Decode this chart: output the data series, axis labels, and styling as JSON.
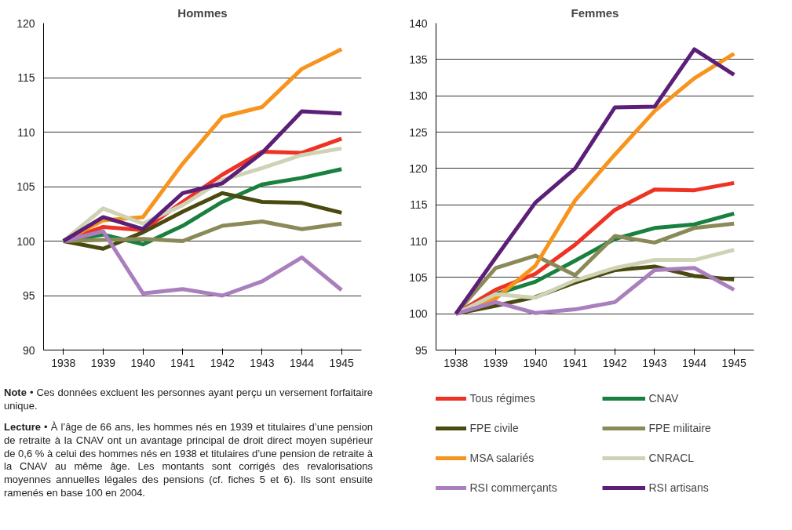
{
  "chart_data": [
    {
      "type": "line",
      "title": "Hommes",
      "categories": [
        "1938",
        "1939",
        "1940",
        "1941",
        "1942",
        "1943",
        "1944",
        "1945"
      ],
      "ylim": [
        90,
        120
      ],
      "yticks": [
        90,
        95,
        100,
        105,
        110,
        115,
        120
      ],
      "grid": "y",
      "legend": false,
      "line_style": "solid",
      "series": [
        {
          "color": "#ee3224",
          "values": [
            100,
            101.3,
            101.0,
            103.6,
            106.1,
            108.2,
            108.1,
            109.4
          ]
        },
        {
          "color": "#1a8040",
          "values": [
            100,
            100.6,
            99.7,
            101.4,
            103.6,
            105.2,
            105.8,
            106.6
          ]
        },
        {
          "color": "#4a4a10",
          "values": [
            100,
            99.3,
            100.8,
            102.7,
            104.4,
            103.6,
            103.5,
            102.6
          ]
        },
        {
          "color": "#8a8a58",
          "values": [
            100,
            100.1,
            100.2,
            100.0,
            101.4,
            101.8,
            101.1,
            101.6
          ]
        },
        {
          "color": "#f7941d",
          "values": [
            100,
            101.9,
            102.2,
            107.1,
            111.4,
            112.3,
            115.8,
            117.6
          ]
        },
        {
          "color": "#cdd3b4",
          "values": [
            100,
            103.0,
            101.6,
            103.3,
            105.6,
            106.7,
            107.9,
            108.5
          ]
        },
        {
          "color": "#a97fbd",
          "values": [
            100,
            100.9,
            95.2,
            95.6,
            95.0,
            96.3,
            98.5,
            95.5
          ]
        },
        {
          "color": "#5c1f78",
          "values": [
            100,
            102.2,
            101.1,
            104.4,
            105.3,
            108.1,
            111.9,
            111.7
          ]
        }
      ],
      "annotations": [
        "Note • Ces données excluent les personnes ayant perçu un versement forfaitaire unique.",
        "Lecture • À l’âge de 66 ans, les hommes nés en 1939 et titulaires d’une pension de retraite à la CNAV ont un avantage principal de droit direct moyen supérieur de 0,6 % à celui des hommes nés en 1938 et titulaires d’une pension de retraite à la CNAV au même âge. Les montants sont corrigés des revalorisations moyennes annuelles légales des pensions (cf. fiches 5 et 6). Ils sont ensuite ramenés en base 100 en 2004."
      ]
    },
    {
      "type": "line",
      "title": "Femmes",
      "categories": [
        "1938",
        "1939",
        "1940",
        "1941",
        "1942",
        "1943",
        "1944",
        "1945"
      ],
      "ylim": [
        95,
        140
      ],
      "yticks": [
        95,
        100,
        105,
        110,
        115,
        120,
        125,
        130,
        135,
        140
      ],
      "grid": "y",
      "legend": "bottom",
      "line_style": "solid",
      "series": [
        {
          "name": "Tous régimes",
          "color": "#ee3224",
          "values": [
            100,
            103.3,
            105.5,
            109.5,
            114.3,
            117.1,
            117.0,
            118.0
          ]
        },
        {
          "name": "CNAV",
          "color": "#1a8040",
          "values": [
            100,
            102.7,
            104.4,
            107.3,
            110.3,
            111.8,
            112.3,
            113.8
          ]
        },
        {
          "name": "FPE civile",
          "color": "#4a4a10",
          "values": [
            100,
            101.1,
            102.3,
            104.3,
            106.0,
            106.5,
            105.2,
            104.7
          ]
        },
        {
          "name": "FPE militaire",
          "color": "#8a8a58",
          "values": [
            100,
            106.3,
            108.0,
            105.3,
            110.7,
            109.8,
            111.8,
            112.4
          ]
        },
        {
          "name": "MSA salariés",
          "color": "#f7941d",
          "values": [
            100,
            102.1,
            106.6,
            115.6,
            121.9,
            127.9,
            132.4,
            135.8
          ]
        },
        {
          "name": "CNRACL",
          "color": "#cdd3b4",
          "values": [
            100,
            102.7,
            102.2,
            104.6,
            106.3,
            107.4,
            107.4,
            108.8
          ]
        },
        {
          "name": "RSI commerçants",
          "color": "#a97fbd",
          "values": [
            100,
            101.6,
            100.1,
            100.6,
            101.6,
            106.0,
            106.3,
            103.3
          ]
        },
        {
          "name": "RSI artisans",
          "color": "#5c1f78",
          "values": [
            100,
            107.7,
            115.3,
            120.0,
            128.4,
            128.5,
            136.4,
            132.9
          ]
        }
      ]
    }
  ]
}
